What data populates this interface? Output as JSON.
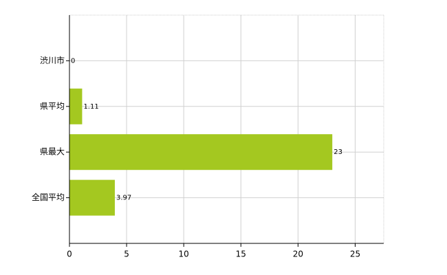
{
  "chart_data": {
    "type": "bar",
    "orientation": "horizontal",
    "categories": [
      "渋川市",
      "県平均",
      "県最大",
      "全国平均"
    ],
    "values": [
      0,
      1.11,
      23,
      3.97
    ],
    "color": "#a4c820",
    "xlim": [
      0,
      27.5
    ],
    "xticks": [
      0,
      5,
      10,
      15,
      20,
      25
    ],
    "grid": true
  }
}
